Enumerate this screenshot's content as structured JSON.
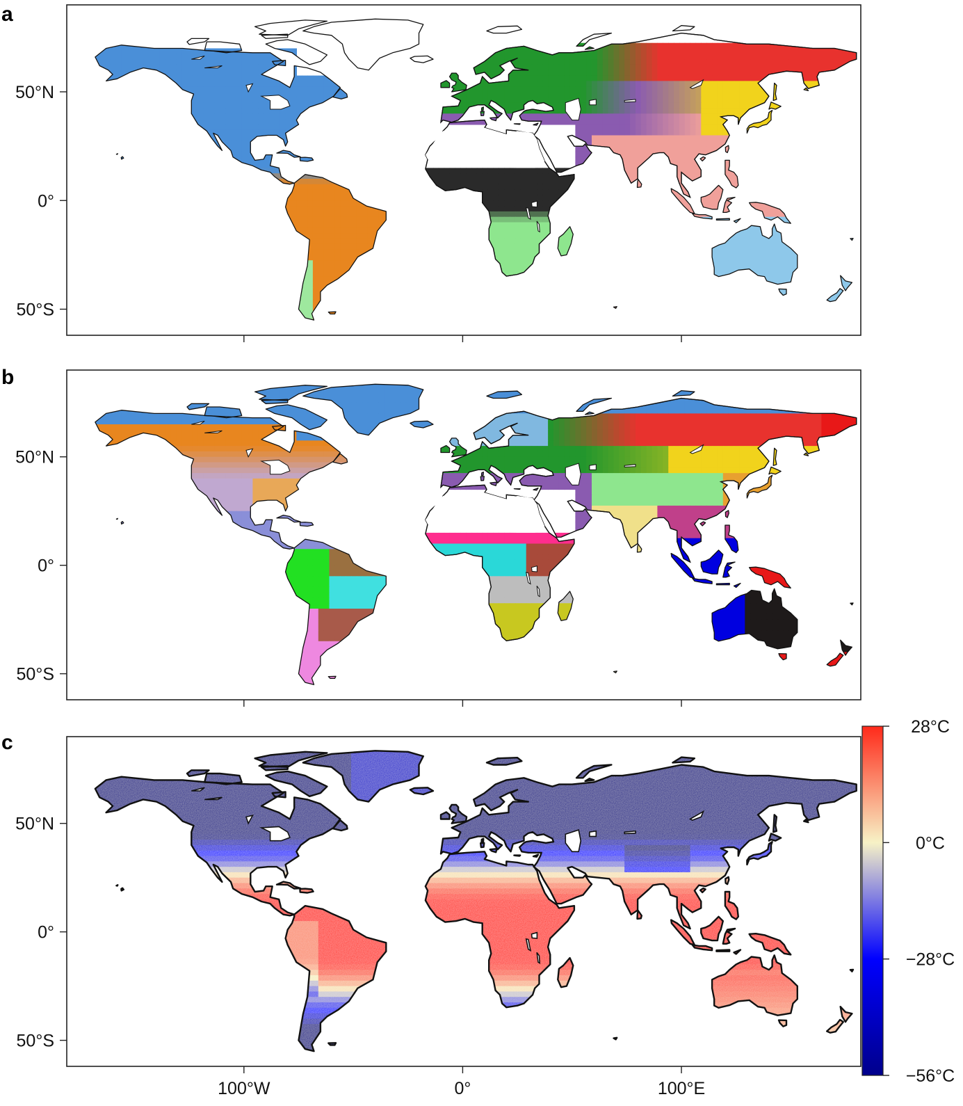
{
  "figure": {
    "panels": [
      {
        "label": "a",
        "kind": "regions",
        "colorize": "regions_a"
      },
      {
        "label": "b",
        "kind": "regions",
        "colorize": "regions_b"
      },
      {
        "label": "c",
        "kind": "temperature"
      }
    ],
    "axis": {
      "x_ticks": [
        {
          "lon": -100,
          "label": "100°W"
        },
        {
          "lon": 0,
          "label": "0°"
        },
        {
          "lon": 100,
          "label": "100°E"
        }
      ],
      "y_ticks": [
        {
          "lat": 50,
          "label": "50°N"
        },
        {
          "lat": 0,
          "label": "0°"
        },
        {
          "lat": -50,
          "label": "50°S"
        }
      ],
      "lon_range": [
        -181,
        182
      ],
      "lat_range": [
        -62,
        90
      ]
    },
    "colorbar": {
      "labels": [
        {
          "value": 28,
          "label": "28°C"
        },
        {
          "value": 0,
          "label": "0°C"
        },
        {
          "value": -28,
          "label": "−28°C"
        },
        {
          "value": -56,
          "label": "−56°C"
        }
      ],
      "range": [
        -56,
        28
      ],
      "colors": [
        "#00008b",
        "#0000ff",
        "#f7f2c6",
        "#ff0000"
      ]
    },
    "region_colors": {
      "north_america_a": "#4a8fd8",
      "south_america_a": "#e8861f",
      "europe_a": "#22962d",
      "siberia_a": "#e8322e",
      "east_asia_a": "#f1d31c",
      "central_asia_a": "#8a5bb0",
      "south_asia_a": "#f0a09a",
      "north_africa_a": "#2a2a2a",
      "south_africa_a": "#8ee68e",
      "australia_a": "#8ec8ea",
      "arctic_b": "#4a8fd8",
      "na_north_b": "#e8861f",
      "na_south_b": "#c0a8d0",
      "central_america_b": "#8a8fd8",
      "amazon_b": "#22e022",
      "brazil_b": "#40e0e0",
      "andes_b": "#ee88e0",
      "pampas_b": "#a85a4a",
      "sahel_b": "#ff2d8e",
      "west_africa_b": "#2ad8d8",
      "east_africa_b": "#a84a3a",
      "south_africa_b": "#c8c820",
      "europe_b": "#22962d",
      "siberia_b": "#e8322e",
      "central_asia_b": "#8a5bb0",
      "east_asia_b": "#f1d31c",
      "tibet_b": "#8ee68e",
      "india_b": "#f0e08a",
      "se_asia_b": "#0000e0",
      "papua_b": "#e81818",
      "australia_b": "#1e1a1a"
    }
  }
}
